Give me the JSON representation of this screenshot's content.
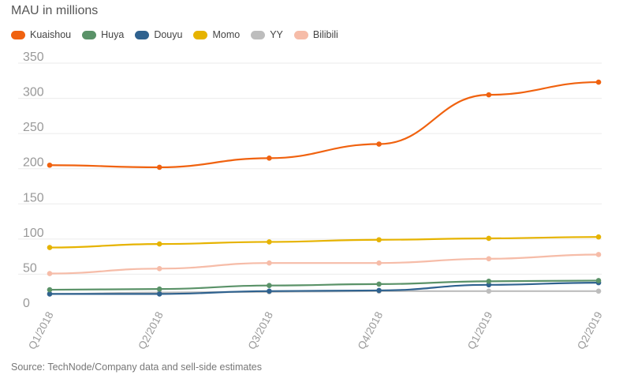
{
  "title": "MAU in millions",
  "source": "Source: TechNode/Company data and sell-side estimates",
  "legend": [
    {
      "name": "Kuaishou",
      "color": "#f0620f"
    },
    {
      "name": "Huya",
      "color": "#5a9268"
    },
    {
      "name": "Douyu",
      "color": "#2f628f"
    },
    {
      "name": "Momo",
      "color": "#e6b300"
    },
    {
      "name": "YY",
      "color": "#bdbdbd"
    },
    {
      "name": "Bilibili",
      "color": "#f6bca8"
    }
  ],
  "chart_data": {
    "type": "line",
    "title": "MAU in millions",
    "xlabel": "",
    "ylabel": "",
    "x": [
      "Q1/2018",
      "Q2/2018",
      "Q3/2018",
      "Q4/2018",
      "Q1/2019",
      "Q2/2019"
    ],
    "yticks": [
      0,
      50,
      100,
      150,
      200,
      250,
      300,
      350
    ],
    "ylim": [
      0,
      350
    ],
    "grid": true,
    "legend_position": "top-left",
    "series": [
      {
        "name": "Kuaishou",
        "color": "#f0620f",
        "values": [
          205,
          202,
          215,
          235,
          305,
          323
        ]
      },
      {
        "name": "Huya",
        "color": "#5a9268",
        "values": [
          28,
          29,
          34,
          36,
          40,
          41
        ]
      },
      {
        "name": "Douyu",
        "color": "#2f628f",
        "values": [
          22,
          22,
          26,
          27,
          35,
          38
        ]
      },
      {
        "name": "Momo",
        "color": "#e6b300",
        "values": [
          88,
          93,
          96,
          99,
          101,
          103
        ]
      },
      {
        "name": "YY",
        "color": "#bdbdbd",
        "values": [
          22,
          24,
          25,
          26,
          26,
          26
        ]
      },
      {
        "name": "Bilibili",
        "color": "#f6bca8",
        "values": [
          51,
          58,
          66,
          66,
          72,
          78
        ]
      }
    ]
  }
}
